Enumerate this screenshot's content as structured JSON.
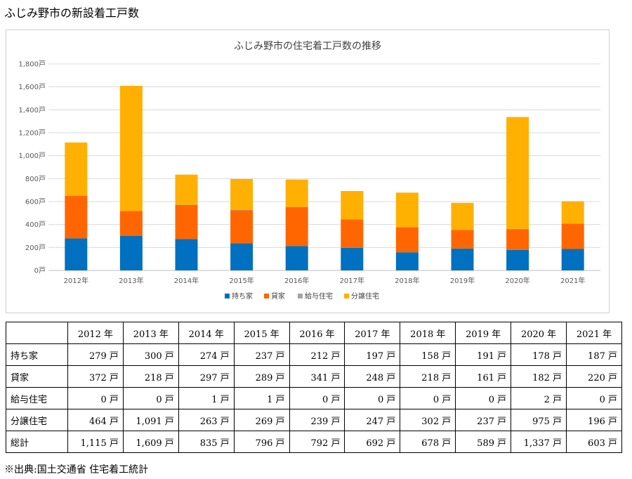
{
  "page_title": "ふじみ野市の新設着工戸数",
  "source": "※出典:国土交通省 住宅着工統計",
  "chart_data": {
    "type": "bar",
    "stacked": true,
    "title": "ふじみ野市の住宅着工戸数の推移",
    "categories": [
      "2012年",
      "2013年",
      "2014年",
      "2015年",
      "2016年",
      "2017年",
      "2018年",
      "2019年",
      "2020年",
      "2021年"
    ],
    "series": [
      {
        "name": "持ち家",
        "color": "#0070C0",
        "values": [
          279,
          300,
          274,
          237,
          212,
          197,
          158,
          191,
          178,
          187
        ]
      },
      {
        "name": "貸家",
        "color": "#FF6600",
        "values": [
          372,
          218,
          297,
          289,
          341,
          248,
          218,
          161,
          182,
          220
        ]
      },
      {
        "name": "給与住宅",
        "color": "#A5A5A5",
        "values": [
          0,
          0,
          1,
          1,
          0,
          0,
          0,
          0,
          2,
          0
        ]
      },
      {
        "name": "分譲住宅",
        "color": "#FFB000",
        "values": [
          464,
          1091,
          263,
          269,
          239,
          247,
          302,
          237,
          975,
          196
        ]
      }
    ],
    "ylim": [
      0,
      1800
    ],
    "yticks": [
      "0戸",
      "200戸",
      "400戸",
      "600戸",
      "800戸",
      "1,000戸",
      "1,200戸",
      "1,400戸",
      "1,600戸",
      "1,800戸"
    ],
    "grid": true,
    "legend_position": "bottom"
  },
  "table": {
    "headers": [
      "2012 年",
      "2013 年",
      "2014 年",
      "2015 年",
      "2016 年",
      "2017 年",
      "2018 年",
      "2019 年",
      "2020 年",
      "2021 年"
    ],
    "rows": [
      {
        "label": "持ち家",
        "cells": [
          "279 戸",
          "300 戸",
          "274 戸",
          "237 戸",
          "212 戸",
          "197 戸",
          "158 戸",
          "191 戸",
          "178 戸",
          "187 戸"
        ]
      },
      {
        "label": "貸家",
        "cells": [
          "372 戸",
          "218 戸",
          "297 戸",
          "289 戸",
          "341 戸",
          "248 戸",
          "218 戸",
          "161 戸",
          "182 戸",
          "220 戸"
        ]
      },
      {
        "label": "給与住宅",
        "cells": [
          "0 戸",
          "0 戸",
          "1 戸",
          "1 戸",
          "0 戸",
          "0 戸",
          "0 戸",
          "0 戸",
          "2 戸",
          "0 戸"
        ]
      },
      {
        "label": "分譲住宅",
        "cells": [
          "464 戸",
          "1,091 戸",
          "263 戸",
          "269 戸",
          "239 戸",
          "247 戸",
          "302 戸",
          "237 戸",
          "975 戸",
          "196 戸"
        ]
      },
      {
        "label": "総計",
        "cells": [
          "1,115 戸",
          "1,609 戸",
          "835 戸",
          "796 戸",
          "792 戸",
          "692 戸",
          "678 戸",
          "589 戸",
          "1,337 戸",
          "603 戸"
        ]
      }
    ]
  }
}
